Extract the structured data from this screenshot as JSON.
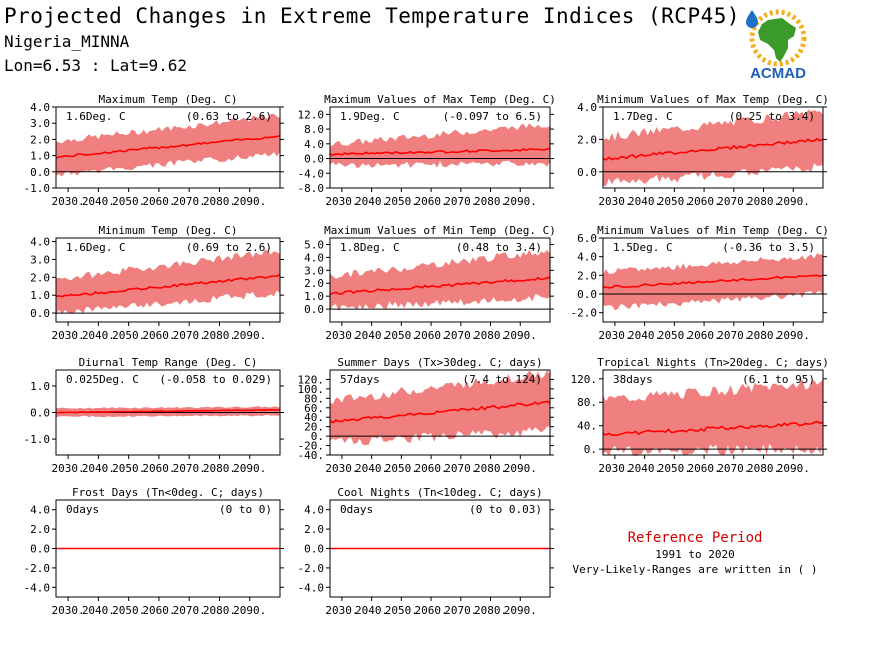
{
  "header": {
    "title": "Projected Changes in Extreme Temperature Indices (RCP45)",
    "location": "Nigeria_MINNA",
    "coordinates": "Lon=6.53 : Lat=9.62"
  },
  "logo": {
    "text": "ACMAD",
    "icon": "africa-map-logo",
    "colors": {
      "africa": "#3a9a2a",
      "drop": "#1f6fc4",
      "sun": "#f2b01e",
      "text": "#1f5fb8"
    }
  },
  "reference": {
    "title": "Reference Period",
    "years": "1991 to 2020",
    "note": "Very-Likely-Ranges are written in ( )"
  },
  "colors": {
    "band": "#f08080",
    "line": "#ff0000",
    "zero": "#000000"
  },
  "chart_data": [
    {
      "type": "area",
      "title": "Maximum Temp (Deg. C)",
      "change": "1.6Deg. C",
      "range": "(0.63 to 2.6)",
      "ylim": [
        -1.0,
        4.0
      ],
      "yticks": [
        -1.0,
        0.0,
        1.0,
        2.0,
        3.0,
        4.0
      ],
      "tick_labels": [
        "-1.0",
        "0.0",
        "1.0",
        "2.0",
        "3.0",
        "4.0"
      ],
      "xticks": [
        "2030.",
        "2040.",
        "2050.",
        "2060.",
        "2070.",
        "2080.",
        "2090."
      ],
      "x_range": [
        2026,
        2100
      ],
      "median_start": 0.9,
      "median_end": 2.2,
      "band_low_start": -0.1,
      "band_low_end": 1.2,
      "band_high_start": 1.8,
      "band_high_end": 3.4
    },
    {
      "type": "area",
      "title": "Maximum Values of Max Temp (Deg. C)",
      "change": "1.9Deg. C",
      "range": "(-0.097 to 6.5)",
      "ylim": [
        -8.0,
        14.0
      ],
      "yticks": [
        -8.0,
        -4.0,
        0.0,
        4.0,
        8.0,
        12.0
      ],
      "tick_labels": [
        "-8.0",
        "-4.0",
        "0.0",
        "4.0",
        "8.0",
        "12.0"
      ],
      "xticks": [
        "2030.",
        "2040.",
        "2050.",
        "2060.",
        "2070.",
        "2080.",
        "2090."
      ],
      "x_range": [
        2026,
        2100
      ],
      "median_start": 1.2,
      "median_end": 2.5,
      "band_low_start": -1.5,
      "band_low_end": -1.0,
      "band_high_start": 3.5,
      "band_high_end": 9.0
    },
    {
      "type": "area",
      "title": "Minimum Values of Max Temp (Deg. C)",
      "change": "1.7Deg. C",
      "range": "(0.25 to 3.4)",
      "ylim": [
        -1.0,
        4.0
      ],
      "yticks": [
        0.0,
        2.0,
        4.0
      ],
      "tick_labels": [
        "0.0",
        "2.0",
        "4.0"
      ],
      "xticks": [
        "2030.",
        "2040.",
        "2050.",
        "2060.",
        "2070.",
        "2080.",
        "2090."
      ],
      "x_range": [
        2026,
        2100
      ],
      "median_start": 0.8,
      "median_end": 2.0,
      "band_low_start": -0.6,
      "band_low_end": 0.4,
      "band_high_start": 2.0,
      "band_high_end": 3.6
    },
    {
      "type": "area",
      "title": "Minimum Temp (Deg. C)",
      "change": "1.6Deg. C",
      "range": "(0.69 to 2.6)",
      "ylim": [
        -0.5,
        4.2
      ],
      "yticks": [
        0.0,
        1.0,
        2.0,
        3.0,
        4.0
      ],
      "tick_labels": [
        "0.0",
        "1.0",
        "2.0",
        "3.0",
        "4.0"
      ],
      "xticks": [
        "2030.",
        "2040.",
        "2050.",
        "2060.",
        "2070.",
        "2080.",
        "2090."
      ],
      "x_range": [
        2026,
        2100
      ],
      "median_start": 0.9,
      "median_end": 2.1,
      "band_low_start": 0.1,
      "band_low_end": 1.2,
      "band_high_start": 1.8,
      "band_high_end": 3.4
    },
    {
      "type": "area",
      "title": "Maximum Values of Min Temp (Deg. C)",
      "change": "1.8Deg. C",
      "range": "(0.48 to 3.4)",
      "ylim": [
        -1.0,
        5.5
      ],
      "yticks": [
        0.0,
        1.0,
        2.0,
        3.0,
        4.0,
        5.0
      ],
      "tick_labels": [
        "0.0",
        "1.0",
        "2.0",
        "3.0",
        "4.0",
        "5.0"
      ],
      "xticks": [
        "2030.",
        "2040.",
        "2050.",
        "2060.",
        "2070.",
        "2080.",
        "2090."
      ],
      "x_range": [
        2026,
        2100
      ],
      "median_start": 1.2,
      "median_end": 2.4,
      "band_low_start": 0.2,
      "band_low_end": 1.0,
      "band_high_start": 2.4,
      "band_high_end": 4.4
    },
    {
      "type": "area",
      "title": "Minimum Values of Min Temp (Deg. C)",
      "change": "1.5Deg. C",
      "range": "(-0.36 to 3.5)",
      "ylim": [
        -3.0,
        6.0
      ],
      "yticks": [
        -2.0,
        0.0,
        2.0,
        4.0,
        6.0
      ],
      "tick_labels": [
        "-2.0",
        "0.0",
        "2.0",
        "4.0",
        "6.0"
      ],
      "xticks": [
        "2030.",
        "2040.",
        "2050.",
        "2060.",
        "2070.",
        "2080.",
        "2090."
      ],
      "x_range": [
        2026,
        2100
      ],
      "median_start": 0.7,
      "median_end": 2.0,
      "band_low_start": -1.4,
      "band_low_end": 0.2,
      "band_high_start": 2.2,
      "band_high_end": 4.0
    },
    {
      "type": "area",
      "title": "Diurnal Temp Range (Deg. C)",
      "change": "0.025Deg. C",
      "range": "(-0.058 to 0.029)",
      "ylim": [
        -1.6,
        1.6
      ],
      "yticks": [
        -1.0,
        0.0,
        1.0
      ],
      "tick_labels": [
        "-1.0",
        "0.0",
        "1.0"
      ],
      "xticks": [
        "2030.",
        "2040.",
        "2050.",
        "2060.",
        "2070.",
        "2080.",
        "2090."
      ],
      "x_range": [
        2026,
        2100
      ],
      "median_start": 0.0,
      "median_end": 0.1,
      "band_low_start": -0.15,
      "band_low_end": -0.1,
      "band_high_start": 0.15,
      "band_high_end": 0.2
    },
    {
      "type": "area",
      "title": "Summer Days (Tx>30deg. C; days)",
      "change": "57days",
      "range": "(7.4 to 124)",
      "ylim": [
        -40.0,
        140.0
      ],
      "yticks": [
        -40.0,
        -20.0,
        0.0,
        20.0,
        40.0,
        60.0,
        80.0,
        100.0,
        120.0
      ],
      "tick_labels": [
        "-40.",
        "-20.",
        "0.",
        "20.",
        "40.",
        "60.",
        "80.",
        "100.",
        "120."
      ],
      "xticks": [
        "2030.",
        "2040.",
        "2050.",
        "2060.",
        "2070.",
        "2080.",
        "2090."
      ],
      "x_range": [
        2026,
        2100
      ],
      "median_start": 30,
      "median_end": 72,
      "band_low_start": -10,
      "band_low_end": 15,
      "band_high_start": 70,
      "band_high_end": 130
    },
    {
      "type": "area",
      "title": "Tropical Nights (Tn>20deg. C; days)",
      "change": "38days",
      "range": "(6.1 to 95)",
      "ylim": [
        -10.0,
        135.0
      ],
      "yticks": [
        0.0,
        40.0,
        80.0,
        120.0
      ],
      "tick_labels": [
        "0.",
        "40.",
        "80.",
        "120."
      ],
      "xticks": [
        "2030.",
        "2040.",
        "2050.",
        "2060.",
        "2070.",
        "2080.",
        "2090."
      ],
      "x_range": [
        2026,
        2100
      ],
      "median_start": 25,
      "median_end": 45,
      "band_low_start": 0,
      "band_low_end": 5,
      "band_high_start": 80,
      "band_high_end": 110
    },
    {
      "type": "area",
      "title": "Frost Days (Tn<0deg. C; days)",
      "change": "0days",
      "range": "(0 to 0)",
      "ylim": [
        -5.0,
        5.0
      ],
      "yticks": [
        -4.0,
        -2.0,
        0.0,
        2.0,
        4.0
      ],
      "tick_labels": [
        "-4.0",
        "-2.0",
        "0.0",
        "2.0",
        "4.0"
      ],
      "xticks": [
        "2030.",
        "2040.",
        "2050.",
        "2060.",
        "2070.",
        "2080.",
        "2090."
      ],
      "x_range": [
        2026,
        2100
      ],
      "median_start": 0.0,
      "median_end": 0.0,
      "band_low_start": 0.0,
      "band_low_end": 0.0,
      "band_high_start": 0.0,
      "band_high_end": 0.0
    },
    {
      "type": "area",
      "title": "Cool Nights (Tn<10deg. C; days)",
      "change": "0days",
      "range": "(0 to 0.03)",
      "ylim": [
        -5.0,
        5.0
      ],
      "yticks": [
        -4.0,
        -2.0,
        0.0,
        2.0,
        4.0
      ],
      "tick_labels": [
        "-4.0",
        "-2.0",
        "0.0",
        "2.0",
        "4.0"
      ],
      "xticks": [
        "2030.",
        "2040.",
        "2050.",
        "2060.",
        "2070.",
        "2080.",
        "2090."
      ],
      "x_range": [
        2026,
        2100
      ],
      "median_start": 0.0,
      "median_end": 0.0,
      "band_low_start": 0.0,
      "band_low_end": 0.0,
      "band_high_start": 0.0,
      "band_high_end": 0.05
    }
  ]
}
